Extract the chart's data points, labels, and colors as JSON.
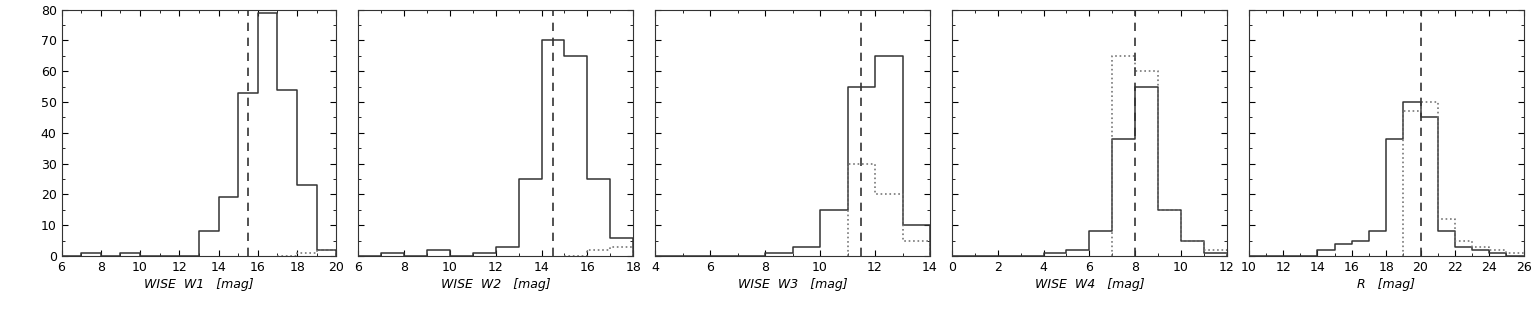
{
  "panels": [
    {
      "xlabel": "WISE  W1   [mag]",
      "xlim": [
        6,
        20
      ],
      "xticks": [
        6,
        8,
        10,
        12,
        14,
        16,
        18,
        20
      ],
      "ylim": [
        0,
        80
      ],
      "yticks": [
        0,
        10,
        20,
        30,
        40,
        50,
        60,
        70,
        80
      ],
      "dashed_line": 15.5,
      "solid_edges": [
        6,
        7,
        8,
        9,
        10,
        11,
        12,
        13,
        14,
        15,
        16,
        17,
        18,
        19,
        20
      ],
      "solid_counts": [
        0,
        1,
        0,
        1,
        0,
        0,
        0,
        8,
        19,
        53,
        79,
        54,
        23,
        2
      ],
      "dotted_edges": [
        17,
        18,
        19,
        20
      ],
      "dotted_counts": [
        0,
        1,
        2
      ]
    },
    {
      "xlabel": "WISE  W2   [mag]",
      "xlim": [
        6,
        18
      ],
      "xticks": [
        6,
        8,
        10,
        12,
        14,
        16,
        18
      ],
      "ylim": [
        0,
        80
      ],
      "yticks": [
        0,
        10,
        20,
        30,
        40,
        50,
        60,
        70,
        80
      ],
      "dashed_line": 14.5,
      "solid_edges": [
        6,
        7,
        8,
        9,
        10,
        11,
        12,
        13,
        14,
        15,
        16,
        17,
        18
      ],
      "solid_counts": [
        0,
        1,
        0,
        2,
        0,
        1,
        3,
        25,
        70,
        65,
        25,
        6
      ],
      "dotted_edges": [
        15,
        16,
        17,
        18
      ],
      "dotted_counts": [
        0,
        2,
        3
      ]
    },
    {
      "xlabel": "WISE  W3   [mag]",
      "xlim": [
        4,
        14
      ],
      "xticks": [
        4,
        6,
        8,
        10,
        12,
        14
      ],
      "ylim": [
        0,
        80
      ],
      "yticks": [
        0,
        10,
        20,
        30,
        40,
        50,
        60,
        70,
        80
      ],
      "dashed_line": 11.5,
      "solid_edges": [
        4,
        5,
        6,
        7,
        8,
        9,
        10,
        11,
        12,
        13,
        14
      ],
      "solid_counts": [
        0,
        0,
        0,
        0,
        1,
        3,
        15,
        55,
        65,
        10
      ],
      "dotted_edges": [
        11,
        12,
        13,
        14
      ],
      "dotted_counts": [
        30,
        20,
        5
      ]
    },
    {
      "xlabel": "WISE  W4   [mag]",
      "xlim": [
        0,
        12
      ],
      "xticks": [
        0,
        2,
        4,
        6,
        8,
        10,
        12
      ],
      "ylim": [
        0,
        80
      ],
      "yticks": [
        0,
        10,
        20,
        30,
        40,
        50,
        60,
        70,
        80
      ],
      "dashed_line": 8.0,
      "solid_edges": [
        0,
        1,
        2,
        3,
        4,
        5,
        6,
        7,
        8,
        9,
        10,
        11,
        12
      ],
      "solid_counts": [
        0,
        0,
        0,
        0,
        1,
        2,
        8,
        38,
        55,
        15,
        5,
        1
      ],
      "dotted_edges": [
        7,
        8,
        9,
        10,
        11,
        12
      ],
      "dotted_counts": [
        65,
        60,
        15,
        5,
        2
      ]
    },
    {
      "xlabel": "R   [mag]",
      "xlim": [
        10,
        26
      ],
      "xticks": [
        10,
        12,
        14,
        16,
        18,
        20,
        22,
        24,
        26
      ],
      "ylim": [
        0,
        80
      ],
      "yticks": [
        0,
        10,
        20,
        30,
        40,
        50,
        60,
        70,
        80
      ],
      "dashed_line": 20.0,
      "solid_edges": [
        10,
        11,
        12,
        13,
        14,
        15,
        16,
        17,
        18,
        19,
        20,
        21,
        22,
        23,
        24,
        25,
        26
      ],
      "solid_counts": [
        0,
        0,
        0,
        0,
        2,
        4,
        5,
        8,
        38,
        50,
        45,
        8,
        3,
        2,
        1,
        0
      ],
      "dotted_edges": [
        19,
        20,
        21,
        22,
        23,
        24,
        25,
        26
      ],
      "dotted_counts": [
        47,
        50,
        12,
        5,
        3,
        2,
        1
      ]
    }
  ],
  "background_color": "#ffffff",
  "line_color": "#333333",
  "dotted_color": "#777777"
}
